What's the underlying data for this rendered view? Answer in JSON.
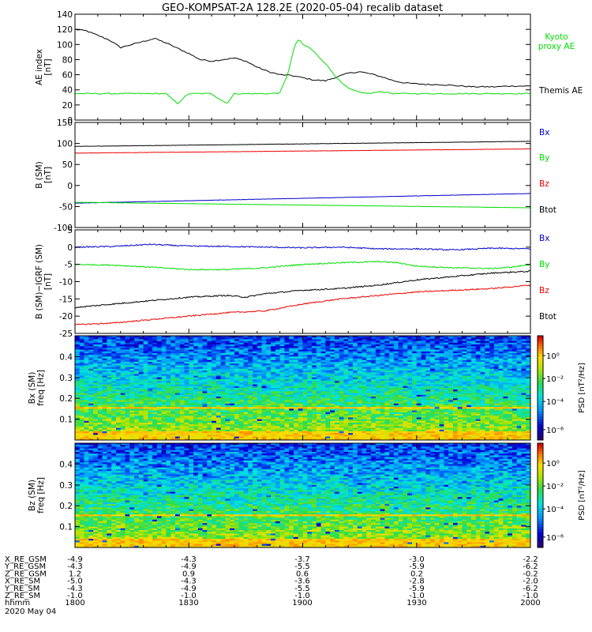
{
  "title": "GEO-KOMPSAT-2A 128.2E (2020-05-04) recalib dataset",
  "colors": {
    "black": "#000000",
    "green": "#00dd00",
    "red": "#ee0000",
    "blue": "#0000cc"
  },
  "chart_data": [
    {
      "type": "line",
      "ylabel": [
        "AE index",
        "[nT]"
      ],
      "ylim": [
        0,
        140
      ],
      "yticks": [
        "0",
        "20",
        "40",
        "60",
        "80",
        "100",
        "120",
        "140"
      ],
      "series": [
        {
          "name": "Themis AE",
          "color": "black",
          "x": [
            0,
            3,
            6,
            9,
            12,
            15,
            18,
            21,
            24,
            27,
            30,
            33,
            36,
            39,
            42,
            45,
            48,
            51,
            54,
            57,
            60,
            63,
            66,
            69,
            72,
            75,
            78,
            81,
            84,
            87,
            90,
            93,
            96,
            99,
            102,
            105,
            108,
            111,
            114,
            117,
            120
          ],
          "values": [
            120,
            118,
            112,
            106,
            96,
            100,
            104,
            108,
            102,
            95,
            88,
            80,
            78,
            80,
            82,
            78,
            70,
            64,
            60,
            59,
            56,
            53,
            52,
            57,
            62,
            64,
            61,
            57,
            52,
            49,
            48,
            47,
            47,
            46,
            45,
            44,
            44,
            44,
            45,
            45,
            45
          ]
        },
        {
          "name": "Kyoto proxy AE",
          "color": "green",
          "x": [
            0,
            3,
            6,
            9,
            12,
            15,
            18,
            21,
            24,
            25.5,
            27,
            30,
            33,
            36,
            38,
            40,
            42,
            45,
            48,
            51,
            54,
            56,
            58,
            59,
            60,
            62,
            64,
            66,
            68,
            70,
            72,
            74,
            76,
            78,
            80,
            84,
            90,
            100,
            110,
            120
          ],
          "values": [
            35,
            35,
            35,
            35,
            35,
            35,
            35,
            35,
            35,
            28,
            22,
            35,
            35,
            35,
            28,
            22,
            35,
            35,
            35,
            35,
            36,
            60,
            100,
            107,
            100,
            95,
            85,
            75,
            62,
            50,
            42,
            38,
            36,
            35,
            38,
            35,
            35,
            35,
            35,
            35
          ]
        }
      ],
      "legend": [
        {
          "text": "Kyoto",
          "color": "green"
        },
        {
          "text": "proxy AE",
          "color": "green"
        },
        {
          "text": "Themis AE",
          "color": "black"
        }
      ]
    },
    {
      "type": "line",
      "ylabel": [
        "B (SM)",
        "[nT]"
      ],
      "ylim": [
        -100,
        150
      ],
      "yticks": [
        "-100",
        "-50",
        "0",
        "50",
        "100",
        "150"
      ],
      "series": [
        {
          "name": "Bx",
          "color": "blue",
          "x": [
            0,
            120
          ],
          "values": [
            -42,
            -19
          ]
        },
        {
          "name": "By",
          "color": "green",
          "x": [
            0,
            120
          ],
          "values": [
            -40,
            -53
          ]
        },
        {
          "name": "Bz",
          "color": "red",
          "x": [
            0,
            120
          ],
          "values": [
            77,
            87
          ]
        },
        {
          "name": "Btot",
          "color": "black",
          "x": [
            0,
            120
          ],
          "values": [
            93,
            105
          ]
        }
      ],
      "legend": [
        {
          "text": "Bx",
          "color": "blue"
        },
        {
          "text": "By",
          "color": "green"
        },
        {
          "text": "Bz",
          "color": "red"
        },
        {
          "text": "Btot",
          "color": "black"
        }
      ]
    },
    {
      "type": "line",
      "ylabel": [
        "B (SM)−IGRF (SM)",
        "[nT]"
      ],
      "ylim": [
        -25,
        5
      ],
      "yticks": [
        "-25",
        "-20",
        "-15",
        "-10",
        "-5",
        "0",
        "5"
      ],
      "series": [
        {
          "name": "Bx",
          "color": "blue",
          "x": [
            0,
            10,
            20,
            30,
            40,
            50,
            60,
            70,
            80,
            90,
            100,
            110,
            120
          ],
          "values": [
            0,
            0.2,
            0.8,
            0.3,
            0.2,
            0,
            -0.2,
            0,
            -0.5,
            -0.5,
            -0.8,
            -0.3,
            -0.5
          ]
        },
        {
          "name": "By",
          "color": "green",
          "x": [
            0,
            10,
            20,
            30,
            40,
            50,
            60,
            70,
            80,
            85,
            90,
            100,
            110,
            115,
            120
          ],
          "values": [
            -5,
            -5.2,
            -5.8,
            -6.5,
            -6.5,
            -6,
            -5,
            -4.5,
            -4.2,
            -4.5,
            -5.5,
            -6,
            -6.2,
            -5.8,
            -5
          ]
        },
        {
          "name": "Bz",
          "color": "red",
          "x": [
            0,
            10,
            20,
            30,
            40,
            50,
            60,
            70,
            80,
            90,
            100,
            110,
            120
          ],
          "values": [
            -22.5,
            -22,
            -21,
            -20,
            -19,
            -18.5,
            -16.5,
            -15,
            -14,
            -13,
            -12.5,
            -12,
            -11
          ]
        },
        {
          "name": "Btot",
          "color": "black",
          "x": [
            0,
            10,
            20,
            30,
            40,
            45,
            50,
            60,
            70,
            80,
            90,
            100,
            110,
            120
          ],
          "values": [
            -17.5,
            -16.5,
            -15.5,
            -14.5,
            -14,
            -14.5,
            -13.5,
            -12.5,
            -12,
            -11,
            -9.5,
            -8.5,
            -7.5,
            -7
          ]
        }
      ],
      "legend": [
        {
          "text": "Bx",
          "color": "blue"
        },
        {
          "text": "By",
          "color": "green"
        },
        {
          "text": "Bz",
          "color": "red"
        },
        {
          "text": "Btot",
          "color": "black"
        }
      ]
    },
    {
      "type": "heatmap",
      "ylabel": [
        "Bx (SM)",
        "freq [Hz]"
      ],
      "ylim": [
        0,
        0.5
      ],
      "yticks": [
        "0.1",
        "0.2",
        "0.3",
        "0.4"
      ],
      "colorbar": {
        "label": "PSD [nT²/Hz]",
        "ticks": [
          "10⁰",
          "10⁻²",
          "10⁻⁴",
          "10⁻⁶"
        ]
      }
    },
    {
      "type": "heatmap",
      "ylabel": [
        "Bz (SM)",
        "freq [Hz]"
      ],
      "ylim": [
        0,
        0.5
      ],
      "yticks": [
        "0.1",
        "0.2",
        "0.3",
        "0.4"
      ],
      "colorbar": {
        "label": "PSD [nT²/Hz]",
        "ticks": [
          "10⁰",
          "10⁻²",
          "10⁻⁴",
          "10⁻⁶"
        ]
      }
    }
  ],
  "ephemeris": {
    "rows": [
      {
        "label": "X_RE_GSM",
        "values": [
          "-4.9",
          "-4.3",
          "-3.7",
          "-3.0",
          "-2.2"
        ]
      },
      {
        "label": "Y_RE_GSM",
        "values": [
          "-4.3",
          "-4.9",
          "-5.5",
          "-5.9",
          "-6.2"
        ]
      },
      {
        "label": "Z_RE_GSM",
        "values": [
          "1.2",
          "0.9",
          "0.6",
          "0.2",
          "-0.2"
        ]
      },
      {
        "label": "X_RE_SM",
        "values": [
          "-5.0",
          "-4.3",
          "-3.6",
          "-2.8",
          "-2.0"
        ]
      },
      {
        "label": "Y_RE_SM",
        "values": [
          "-4.3",
          "-4.9",
          "-5.5",
          "-5.9",
          "-6.2"
        ]
      },
      {
        "label": "Z_RE_SM",
        "values": [
          "-1.0",
          "-1.0",
          "-1.0",
          "-1.0",
          "-1.0"
        ]
      },
      {
        "label": "hhmm",
        "values": [
          "1800",
          "1830",
          "1900",
          "1930",
          "2000"
        ]
      }
    ],
    "date": "2020 May 04"
  }
}
